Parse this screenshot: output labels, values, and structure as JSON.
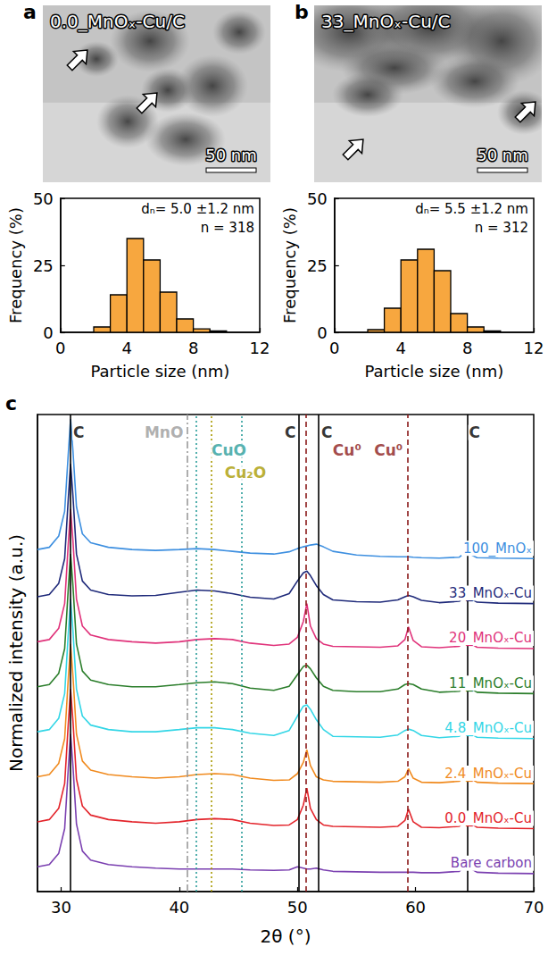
{
  "panels": [
    {
      "letter": "a",
      "title": "0.0_MnOₓ-Cu/C",
      "scale_bar": "50 nm"
    },
    {
      "letter": "b",
      "title": "33_MnOₓ-Cu/C",
      "scale_bar": "50 nm"
    }
  ],
  "chart_data": [
    {
      "type": "histogram",
      "xlabel": "Particle size (nm)",
      "ylabel": "Frequency (%)",
      "bins": [
        2,
        3,
        4,
        5,
        6,
        7,
        8,
        9,
        10
      ],
      "counts": [
        2,
        14,
        35,
        27,
        15,
        5,
        1.3,
        0.5
      ],
      "color": "#f7a73f",
      "xlim": [
        0,
        12
      ],
      "xticks": [
        0,
        4,
        8,
        12
      ],
      "ylim": [
        0,
        50
      ],
      "yticks": [
        0,
        25,
        50
      ],
      "annotations": [
        "dₙ= 5.0 ±1.2 nm",
        "n = 318"
      ]
    },
    {
      "type": "histogram",
      "xlabel": "Particle size (nm)",
      "ylabel": "Frequency (%)",
      "bins": [
        2,
        3,
        4,
        5,
        6,
        7,
        8,
        9,
        10
      ],
      "counts": [
        1,
        9,
        27,
        31,
        23,
        7,
        2,
        0.5
      ],
      "color": "#f7a73f",
      "xlim": [
        0,
        12
      ],
      "xticks": [
        0,
        4,
        8,
        12
      ],
      "ylim": [
        0,
        50
      ],
      "yticks": [
        0,
        25,
        50
      ],
      "annotations": [
        "dₙ= 5.5 ±1.2 nm",
        "n = 312"
      ]
    },
    {
      "type": "line",
      "letter": "c",
      "xlabel": "2θ (°)",
      "ylabel": "Normalized intensity (a.u.)",
      "x": [
        28,
        29,
        29.8,
        30.3,
        30.6,
        30.8,
        31.0,
        31.3,
        31.8,
        32.5,
        34,
        36,
        38,
        40,
        41.5,
        43,
        44.5,
        46,
        48,
        49.3,
        50.0,
        50.5,
        50.8,
        51.1,
        51.6,
        52.2,
        53,
        55,
        57,
        58.5,
        59.1,
        59.4,
        59.8,
        60.5,
        62,
        63.7,
        64.3,
        64.6,
        65.2,
        67,
        70
      ],
      "series": [
        {
          "name": "100_MnOₓ",
          "color": "#3d8fe0",
          "values": [
            7.6,
            7.65,
            7.9,
            8.45,
            9.7,
            10.5,
            9.8,
            8.55,
            7.95,
            7.75,
            7.65,
            7.6,
            7.58,
            7.6,
            7.62,
            7.6,
            7.56,
            7.52,
            7.5,
            7.55,
            7.62,
            7.66,
            7.68,
            7.7,
            7.72,
            7.66,
            7.56,
            7.48,
            7.45,
            7.44,
            7.44,
            7.44,
            7.43,
            7.42,
            7.41,
            7.43,
            7.55,
            7.5,
            7.42,
            7.41,
            7.4
          ]
        },
        {
          "name": "33_MnOₓ-Cu",
          "color": "#1f2a7a",
          "values": [
            6.55,
            6.6,
            6.85,
            7.4,
            8.7,
            9.5,
            8.8,
            7.5,
            6.9,
            6.7,
            6.6,
            6.57,
            6.58,
            6.65,
            6.7,
            6.68,
            6.62,
            6.54,
            6.5,
            6.62,
            6.9,
            7.08,
            7.12,
            7.02,
            6.8,
            6.6,
            6.48,
            6.44,
            6.43,
            6.48,
            6.55,
            6.58,
            6.55,
            6.47,
            6.42,
            6.45,
            6.6,
            6.52,
            6.43,
            6.41,
            6.4
          ]
        },
        {
          "name": "20_MnOₓ-Cu",
          "color": "#e0327a",
          "values": [
            5.55,
            5.6,
            5.85,
            6.4,
            7.7,
            8.5,
            7.8,
            6.5,
            5.9,
            5.7,
            5.6,
            5.55,
            5.52,
            5.55,
            5.6,
            5.62,
            5.6,
            5.52,
            5.47,
            5.5,
            5.65,
            6.0,
            6.4,
            5.9,
            5.62,
            5.5,
            5.45,
            5.44,
            5.43,
            5.46,
            5.6,
            5.88,
            5.58,
            5.44,
            5.42,
            5.45,
            5.6,
            5.52,
            5.43,
            5.41,
            5.4
          ]
        },
        {
          "name": "11_MnOₓ-Cu",
          "color": "#2a7d2a",
          "values": [
            4.55,
            4.6,
            4.85,
            5.4,
            6.7,
            7.5,
            6.8,
            5.5,
            4.9,
            4.7,
            4.6,
            4.55,
            4.55,
            4.6,
            4.64,
            4.66,
            4.62,
            4.52,
            4.47,
            4.56,
            4.82,
            5.0,
            5.03,
            4.95,
            4.75,
            4.56,
            4.47,
            4.44,
            4.44,
            4.5,
            4.6,
            4.62,
            4.6,
            4.5,
            4.43,
            4.45,
            4.6,
            4.52,
            4.43,
            4.41,
            4.4
          ]
        },
        {
          "name": "4.8_MnOₓ-Cu",
          "color": "#33d6e6",
          "values": [
            3.55,
            3.6,
            3.85,
            4.4,
            5.7,
            6.5,
            5.8,
            4.5,
            3.9,
            3.7,
            3.6,
            3.55,
            3.55,
            3.6,
            3.64,
            3.64,
            3.6,
            3.52,
            3.47,
            3.58,
            3.9,
            4.12,
            4.15,
            4.05,
            3.82,
            3.6,
            3.45,
            3.44,
            3.43,
            3.48,
            3.58,
            3.61,
            3.58,
            3.47,
            3.42,
            3.45,
            3.6,
            3.52,
            3.43,
            3.41,
            3.4
          ]
        },
        {
          "name": "2.4_MnOₓ-Cu",
          "color": "#f08a1e",
          "values": [
            2.55,
            2.6,
            2.85,
            3.4,
            4.7,
            5.5,
            4.8,
            3.5,
            2.9,
            2.7,
            2.6,
            2.55,
            2.52,
            2.55,
            2.6,
            2.62,
            2.6,
            2.52,
            2.47,
            2.48,
            2.62,
            2.87,
            3.15,
            2.8,
            2.55,
            2.48,
            2.45,
            2.44,
            2.43,
            2.45,
            2.55,
            2.73,
            2.52,
            2.43,
            2.42,
            2.45,
            2.6,
            2.52,
            2.43,
            2.41,
            2.4
          ]
        },
        {
          "name": "0.0_MnOₓ-Cu",
          "color": "#e3242b",
          "values": [
            1.55,
            1.6,
            1.85,
            2.4,
            3.7,
            4.5,
            3.8,
            2.5,
            1.9,
            1.7,
            1.6,
            1.55,
            1.52,
            1.55,
            1.6,
            1.62,
            1.6,
            1.52,
            1.47,
            1.48,
            1.6,
            1.92,
            2.3,
            1.85,
            1.6,
            1.48,
            1.45,
            1.44,
            1.43,
            1.45,
            1.58,
            1.83,
            1.55,
            1.43,
            1.42,
            1.45,
            1.6,
            1.52,
            1.43,
            1.41,
            1.4
          ]
        },
        {
          "name": "Bare carbon",
          "color": "#7a3fb0",
          "values": [
            0.55,
            0.6,
            0.85,
            1.4,
            2.7,
            3.5,
            2.8,
            1.5,
            0.9,
            0.7,
            0.6,
            0.55,
            0.52,
            0.5,
            0.5,
            0.5,
            0.5,
            0.48,
            0.47,
            0.48,
            0.55,
            0.52,
            0.5,
            0.5,
            0.52,
            0.48,
            0.45,
            0.44,
            0.43,
            0.43,
            0.43,
            0.43,
            0.43,
            0.42,
            0.42,
            0.45,
            0.6,
            0.52,
            0.43,
            0.41,
            0.4
          ]
        }
      ],
      "xlim": [
        28,
        70
      ],
      "xticks": [
        30,
        40,
        50,
        60,
        70
      ],
      "ylim": [
        0,
        10.6
      ],
      "tick_labels": "x",
      "reference_lines": [
        {
          "x": 30.8,
          "color": "#000000",
          "line_style": "solid"
        },
        {
          "x": 50.1,
          "color": "#000000",
          "line_style": "solid"
        },
        {
          "x": 51.8,
          "color": "#000000",
          "line_style": "solid"
        },
        {
          "x": 64.4,
          "color": "#000000",
          "line_style": "solid"
        },
        {
          "x": 40.7,
          "color": "#9a9a9a",
          "line_style": "dashdot"
        },
        {
          "x": 41.4,
          "color": "#2a9d9a",
          "line_style": "dotted"
        },
        {
          "x": 45.3,
          "color": "#2a9d9a",
          "line_style": "dotted"
        },
        {
          "x": 42.7,
          "color": "#a89a00",
          "line_style": "dotted"
        },
        {
          "x": 50.7,
          "color": "#8b1a1a",
          "line_style": "dashed"
        },
        {
          "x": 59.3,
          "color": "#8b1a1a",
          "line_style": "dashed"
        }
      ],
      "annotations": [
        {
          "text": "C",
          "x": 31.5,
          "y": 10.2,
          "color": "#000000"
        },
        {
          "text": "MnO",
          "x": 38.7,
          "y": 10.2,
          "color": "#9a9a9a"
        },
        {
          "text": "CuO",
          "x": 44.2,
          "y": 9.8,
          "color": "#2a9d9a"
        },
        {
          "text": "Cu₂O",
          "x": 45.6,
          "y": 9.3,
          "color": "#a89a00"
        },
        {
          "text": "C",
          "x": 49.4,
          "y": 10.2,
          "color": "#000000"
        },
        {
          "text": "C",
          "x": 52.5,
          "y": 10.2,
          "color": "#000000"
        },
        {
          "text": "Cu⁰",
          "x": 54.2,
          "y": 9.8,
          "color": "#8b1a1a"
        },
        {
          "text": "Cu⁰",
          "x": 57.7,
          "y": 9.8,
          "color": "#8b1a1a"
        },
        {
          "text": "C",
          "x": 65.0,
          "y": 10.2,
          "color": "#000000"
        }
      ]
    }
  ]
}
